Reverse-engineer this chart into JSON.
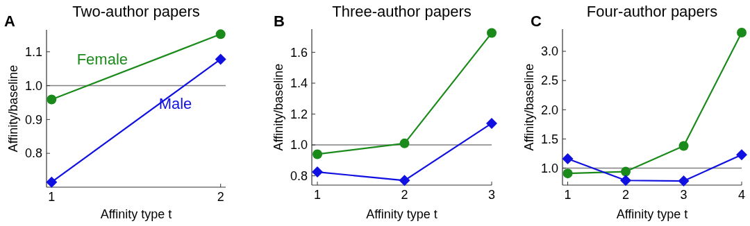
{
  "chart_data": [
    {
      "type": "line",
      "title": "Two-author papers",
      "xlabel": "Affinity type t",
      "ylabel": "Affinity/baseline",
      "annotations": [
        "A"
      ],
      "xlim": [
        0.97,
        2.03
      ],
      "xticks": [
        1,
        2
      ],
      "ylim": [
        0.7,
        1.165
      ],
      "yticks": [
        0.8,
        0.9,
        {
          "value": 1,
          "label": "1.0"
        },
        1.1
      ],
      "x": [
        1,
        2
      ],
      "series": [
        {
          "name": "Female",
          "color": "#1a8a1a",
          "marker": "circle",
          "values": [
            0.959,
            1.152
          ]
        },
        {
          "name": "Male",
          "color": "#1010e0",
          "marker": "diamond",
          "values": [
            0.715,
            1.078
          ]
        }
      ],
      "ref_lines": [
        {
          "axis": "y",
          "value": 1,
          "color": "#808080"
        }
      ]
    },
    {
      "type": "line",
      "title": "Three-author papers",
      "xlabel": "Affinity type t",
      "ylabel": "Affinity/baseline",
      "annotations": [
        "B"
      ],
      "xlim": [
        0.936,
        3
      ],
      "xticks": [
        1,
        2,
        3
      ],
      "ylim": [
        0.74,
        1.75
      ],
      "yticks": [
        0.8,
        {
          "value": 1,
          "label": "1.0"
        },
        1.2,
        1.4,
        1.6
      ],
      "x": [
        1,
        2,
        3
      ],
      "series": [
        {
          "color": "#1a8a1a",
          "marker": "circle",
          "values": [
            0.94,
            1.01,
            1.725
          ]
        },
        {
          "color": "#1010e0",
          "marker": "diamond",
          "values": [
            0.825,
            0.77,
            1.14
          ]
        }
      ],
      "ref_lines": [
        {
          "axis": "y",
          "value": 1,
          "color": "#808080"
        }
      ]
    },
    {
      "type": "line",
      "title": "Four-author papers",
      "xlabel": "Affinity type t",
      "ylabel": "Affinity/baseline",
      "annotations": [
        "C"
      ],
      "xlim": [
        0.91,
        4
      ],
      "xticks": [
        1,
        2,
        3,
        4
      ],
      "ylim": [
        0.71,
        3.38
      ],
      "yticks": [
        {
          "value": 1,
          "label": "1.0"
        },
        1.5,
        {
          "value": 2,
          "label": "2.0"
        },
        2.5,
        {
          "value": 3,
          "label": "3.0"
        }
      ],
      "x": [
        1,
        2,
        3,
        4
      ],
      "series": [
        {
          "color": "#1a8a1a",
          "marker": "circle",
          "values": [
            0.91,
            0.94,
            1.38,
            3.32
          ]
        },
        {
          "color": "#1010e0",
          "marker": "diamond",
          "values": [
            1.16,
            0.79,
            0.78,
            1.23
          ]
        }
      ],
      "ref_lines": [
        {
          "axis": "y",
          "value": 1,
          "color": "#808080"
        }
      ]
    }
  ]
}
